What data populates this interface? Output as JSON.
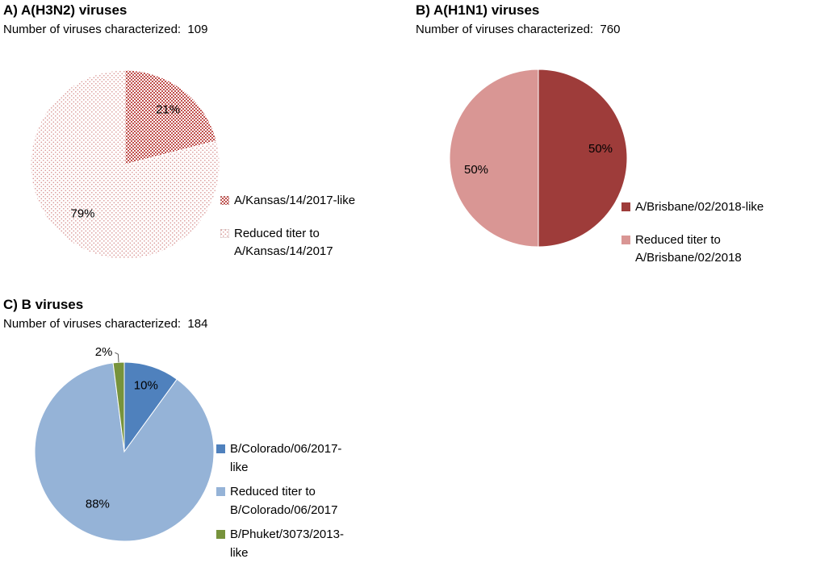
{
  "page": {
    "background_color": "#ffffff"
  },
  "chart_data": [
    {
      "type": "pie",
      "panel": "A",
      "title": "A) A(H3N2) viruses",
      "subtitle": "Number of viruses characterized:  109",
      "number_characterized": 109,
      "legend_position": "right",
      "slices": [
        {
          "label": "A/Kansas/14/2017-like",
          "value_pct": 21,
          "data_label": "21%",
          "color": "#c0504d",
          "pattern": "checker"
        },
        {
          "label": "Reduced titer to A/Kansas/14/2017",
          "value_pct": 79,
          "data_label": "79%",
          "color": "#d99694",
          "pattern": "dots"
        }
      ]
    },
    {
      "type": "pie",
      "panel": "B",
      "title": "B) A(H1N1) viruses",
      "subtitle": "Number of viruses characterized:  760",
      "number_characterized": 760,
      "legend_position": "right",
      "slices": [
        {
          "label": "A/Brisbane/02/2018-like",
          "value_pct": 50,
          "data_label": "50%",
          "color": "#9e3c3a",
          "pattern": null
        },
        {
          "label": "Reduced titer to A/Brisbane/02/2018",
          "value_pct": 50,
          "data_label": "50%",
          "color": "#d99694",
          "pattern": null
        }
      ]
    },
    {
      "type": "pie",
      "panel": "C",
      "title": "C) B viruses",
      "subtitle": "Number of viruses characterized:  184",
      "number_characterized": 184,
      "legend_position": "right",
      "slices": [
        {
          "label": "B/Colorado/06/2017-like",
          "value_pct": 10,
          "data_label": "10%",
          "color": "#4f81bd",
          "pattern": null
        },
        {
          "label": "Reduced titer to B/Colorado/06/2017",
          "value_pct": 88,
          "data_label": "88%",
          "color": "#95b3d7",
          "pattern": null
        },
        {
          "label": "B/Phuket/3073/2013-like",
          "value_pct": 2,
          "data_label": "2%",
          "color": "#77933c",
          "pattern": null
        }
      ]
    }
  ]
}
